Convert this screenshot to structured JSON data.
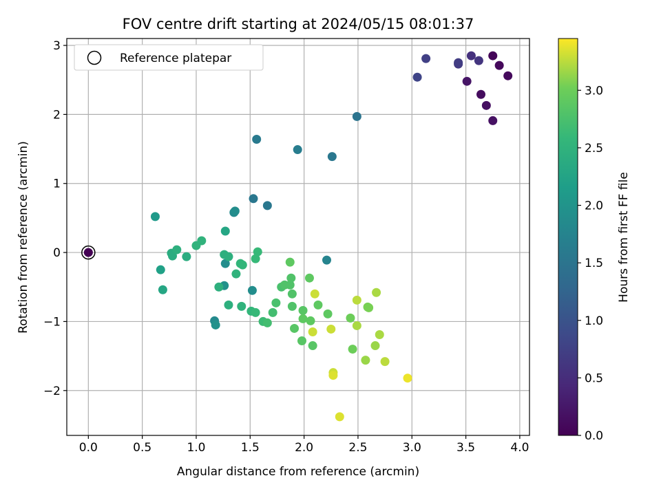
{
  "chart_data": {
    "type": "scatter",
    "title": "FOV centre drift starting at 2024/05/15 08:01:37",
    "xlabel": "Angular distance from reference (arcmin)",
    "ylabel": "Rotation from reference (arcmin)",
    "xlim": [
      -0.2,
      4.09
    ],
    "ylim": [
      -2.65,
      3.1
    ],
    "xticks": [
      "0.0",
      "0.5",
      "1.0",
      "1.5",
      "2.0",
      "2.5",
      "3.0",
      "3.5",
      "4.0"
    ],
    "yticks": [
      "−2",
      "−1",
      "0",
      "1",
      "2",
      "3"
    ],
    "grid": true,
    "legend": {
      "placement": "top-left",
      "entries": [
        "Reference platepar"
      ]
    },
    "colorbar": {
      "label": "Hours from first FF file",
      "colormap": "viridis",
      "range": [
        0.0,
        3.45
      ],
      "ticks": [
        "0.0",
        "0.5",
        "1.0",
        "1.5",
        "2.0",
        "2.5",
        "3.0"
      ]
    },
    "reference_point": {
      "x": 0.0,
      "y": 0.0
    },
    "points": [
      {
        "x": 0.0,
        "y": 0.0,
        "c": 0.0
      },
      {
        "x": 3.75,
        "y": 2.85,
        "c": 0.05
      },
      {
        "x": 3.81,
        "y": 2.71,
        "c": 0.08
      },
      {
        "x": 3.89,
        "y": 2.56,
        "c": 0.1
      },
      {
        "x": 3.64,
        "y": 2.29,
        "c": 0.12
      },
      {
        "x": 3.69,
        "y": 2.13,
        "c": 0.15
      },
      {
        "x": 3.75,
        "y": 1.91,
        "c": 0.18
      },
      {
        "x": 3.51,
        "y": 2.48,
        "c": 0.22
      },
      {
        "x": 3.55,
        "y": 2.85,
        "c": 0.55
      },
      {
        "x": 3.62,
        "y": 2.78,
        "c": 0.6
      },
      {
        "x": 3.43,
        "y": 2.73,
        "c": 0.65
      },
      {
        "x": 3.43,
        "y": 2.75,
        "c": 0.7
      },
      {
        "x": 3.13,
        "y": 2.81,
        "c": 0.75
      },
      {
        "x": 3.05,
        "y": 2.54,
        "c": 0.8
      },
      {
        "x": 2.49,
        "y": 1.97,
        "c": 1.5
      },
      {
        "x": 2.26,
        "y": 1.39,
        "c": 1.55
      },
      {
        "x": 1.94,
        "y": 1.49,
        "c": 1.65
      },
      {
        "x": 1.56,
        "y": 1.64,
        "c": 1.6
      },
      {
        "x": 1.53,
        "y": 0.78,
        "c": 1.55
      },
      {
        "x": 1.66,
        "y": 0.68,
        "c": 1.55
      },
      {
        "x": 2.21,
        "y": -0.11,
        "c": 1.75
      },
      {
        "x": 1.35,
        "y": 0.58,
        "c": 1.85
      },
      {
        "x": 1.36,
        "y": 0.6,
        "c": 1.9
      },
      {
        "x": 1.27,
        "y": -0.16,
        "c": 1.9
      },
      {
        "x": 1.26,
        "y": -0.48,
        "c": 1.95
      },
      {
        "x": 1.17,
        "y": -0.99,
        "c": 1.85
      },
      {
        "x": 1.18,
        "y": -1.05,
        "c": 1.95
      },
      {
        "x": 1.52,
        "y": -0.55,
        "c": 1.9
      },
      {
        "x": 1.27,
        "y": 0.31,
        "c": 2.3
      },
      {
        "x": 0.62,
        "y": 0.52,
        "c": 2.1
      },
      {
        "x": 0.67,
        "y": -0.25,
        "c": 2.2
      },
      {
        "x": 0.69,
        "y": -0.54,
        "c": 2.3
      },
      {
        "x": 0.77,
        "y": -0.01,
        "c": 2.4
      },
      {
        "x": 0.78,
        "y": -0.05,
        "c": 2.4
      },
      {
        "x": 0.82,
        "y": 0.04,
        "c": 2.45
      },
      {
        "x": 0.91,
        "y": -0.06,
        "c": 2.4
      },
      {
        "x": 1.0,
        "y": 0.1,
        "c": 2.5
      },
      {
        "x": 1.05,
        "y": 0.17,
        "c": 2.5
      },
      {
        "x": 1.26,
        "y": -0.03,
        "c": 2.45
      },
      {
        "x": 1.3,
        "y": -0.06,
        "c": 2.45
      },
      {
        "x": 1.21,
        "y": -0.5,
        "c": 2.45
      },
      {
        "x": 1.3,
        "y": -0.76,
        "c": 2.45
      },
      {
        "x": 1.37,
        "y": -0.31,
        "c": 2.5
      },
      {
        "x": 1.41,
        "y": -0.16,
        "c": 2.55
      },
      {
        "x": 1.43,
        "y": -0.18,
        "c": 2.55
      },
      {
        "x": 1.42,
        "y": -0.78,
        "c": 2.5
      },
      {
        "x": 1.51,
        "y": -0.85,
        "c": 2.55
      },
      {
        "x": 1.55,
        "y": -0.09,
        "c": 2.6
      },
      {
        "x": 1.57,
        "y": 0.01,
        "c": 2.6
      },
      {
        "x": 1.55,
        "y": -0.87,
        "c": 2.6
      },
      {
        "x": 1.62,
        "y": -1.0,
        "c": 2.65
      },
      {
        "x": 1.66,
        "y": -1.02,
        "c": 2.7
      },
      {
        "x": 1.71,
        "y": -0.87,
        "c": 2.7
      },
      {
        "x": 1.74,
        "y": -0.73,
        "c": 2.75
      },
      {
        "x": 1.79,
        "y": -0.5,
        "c": 2.75
      },
      {
        "x": 1.82,
        "y": -0.47,
        "c": 2.8
      },
      {
        "x": 1.87,
        "y": -0.47,
        "c": 2.8
      },
      {
        "x": 1.88,
        "y": -0.37,
        "c": 2.8
      },
      {
        "x": 1.87,
        "y": -0.14,
        "c": 2.9
      },
      {
        "x": 1.89,
        "y": -0.6,
        "c": 2.8
      },
      {
        "x": 1.89,
        "y": -0.78,
        "c": 2.8
      },
      {
        "x": 1.91,
        "y": -1.1,
        "c": 2.85
      },
      {
        "x": 1.98,
        "y": -1.28,
        "c": 2.85
      },
      {
        "x": 1.99,
        "y": -0.84,
        "c": 2.85
      },
      {
        "x": 1.99,
        "y": -0.96,
        "c": 2.9
      },
      {
        "x": 2.05,
        "y": -0.37,
        "c": 2.9
      },
      {
        "x": 2.06,
        "y": -0.99,
        "c": 2.9
      },
      {
        "x": 2.08,
        "y": -1.35,
        "c": 2.85
      },
      {
        "x": 2.1,
        "y": -0.6,
        "c": 3.3
      },
      {
        "x": 2.08,
        "y": -1.15,
        "c": 3.3
      },
      {
        "x": 2.13,
        "y": -0.76,
        "c": 2.9
      },
      {
        "x": 2.22,
        "y": -0.89,
        "c": 2.9
      },
      {
        "x": 2.25,
        "y": -1.11,
        "c": 3.3
      },
      {
        "x": 2.27,
        "y": -1.74,
        "c": 3.3
      },
      {
        "x": 2.27,
        "y": -1.78,
        "c": 3.35
      },
      {
        "x": 2.33,
        "y": -2.38,
        "c": 3.35
      },
      {
        "x": 2.43,
        "y": -0.95,
        "c": 3.0
      },
      {
        "x": 2.45,
        "y": -1.4,
        "c": 3.0
      },
      {
        "x": 2.49,
        "y": -0.69,
        "c": 3.25
      },
      {
        "x": 2.49,
        "y": -1.06,
        "c": 3.2
      },
      {
        "x": 2.57,
        "y": -1.56,
        "c": 3.15
      },
      {
        "x": 2.59,
        "y": -0.79,
        "c": 3.05
      },
      {
        "x": 2.6,
        "y": -0.8,
        "c": 3.05
      },
      {
        "x": 2.66,
        "y": -1.35,
        "c": 3.15
      },
      {
        "x": 2.67,
        "y": -0.58,
        "c": 3.2
      },
      {
        "x": 2.7,
        "y": -1.19,
        "c": 3.2
      },
      {
        "x": 2.75,
        "y": -1.58,
        "c": 3.25
      },
      {
        "x": 2.96,
        "y": -1.82,
        "c": 3.4
      }
    ]
  }
}
